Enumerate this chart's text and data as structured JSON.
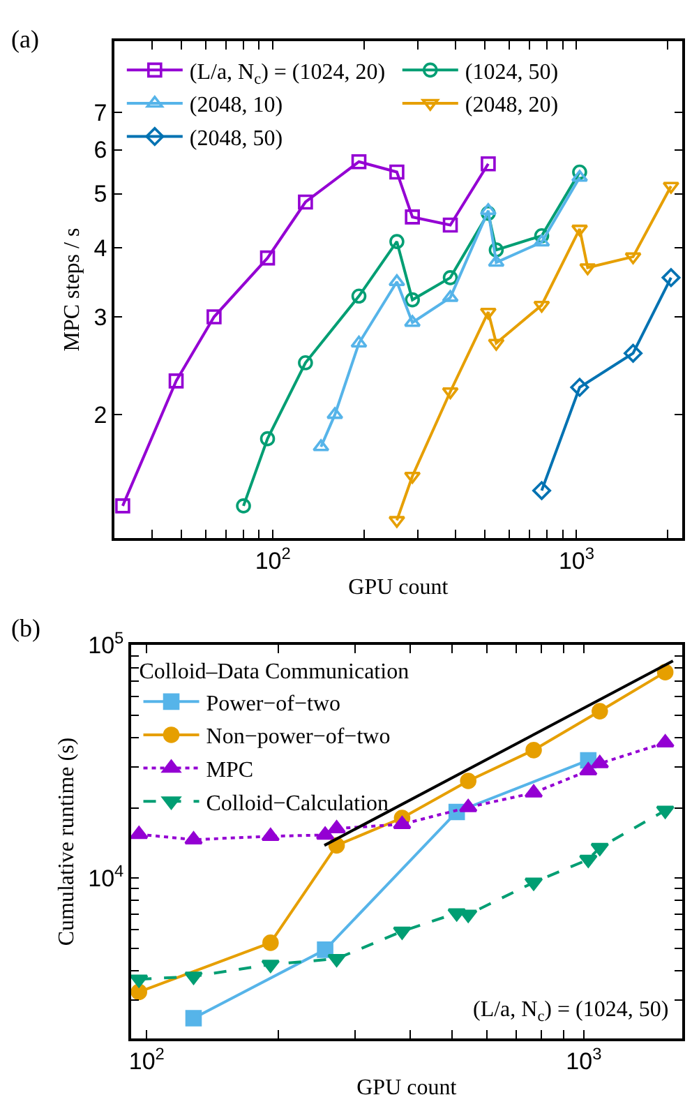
{
  "chart_data": [
    {
      "type": "line",
      "title": "(a)",
      "xlabel": "GPU count",
      "ylabel": "MPC steps / s",
      "log": "xy",
      "legend": "top",
      "line_style": "solid",
      "xlim": [
        30,
        2230
      ],
      "ylim": [
        1.2,
        9.4
      ],
      "xticks": [
        {
          "value": 40,
          "label": null
        },
        {
          "value": 50,
          "label": null
        },
        {
          "value": 60,
          "label": null
        },
        {
          "value": 70,
          "label": null
        },
        {
          "value": 80,
          "label": null
        },
        {
          "value": 90,
          "label": null
        },
        {
          "value": 100,
          "label": "10$^{2}$"
        },
        {
          "value": 200,
          "label": null
        },
        {
          "value": 300,
          "label": null
        },
        {
          "value": 400,
          "label": null
        },
        {
          "value": 500,
          "label": null
        },
        {
          "value": 600,
          "label": null
        },
        {
          "value": 700,
          "label": null
        },
        {
          "value": 800,
          "label": null
        },
        {
          "value": 900,
          "label": null
        },
        {
          "value": 1000,
          "label": "10$^{3}$"
        },
        {
          "value": 2000,
          "label": null
        }
      ],
      "yticks": [
        2,
        3,
        4,
        5,
        6,
        7
      ],
      "series": [
        {
          "name": "(L/a, N$_{c}$) = (1024, 20)",
          "color": "#9400d3",
          "marker": "square-open",
          "x": [
            32,
            48,
            64,
            96,
            128,
            192,
            256,
            288,
            384,
            512
          ],
          "values": [
            1.37,
            2.3,
            3.0,
            3.83,
            4.83,
            5.71,
            5.47,
            4.54,
            4.39,
            5.66
          ]
        },
        {
          "name": "(1024, 50)",
          "color": "#009e73",
          "marker": "circle-open",
          "x": [
            80,
            96,
            128,
            192,
            256,
            288,
            384,
            512,
            544,
            768,
            1024
          ],
          "values": [
            1.37,
            1.81,
            2.48,
            3.27,
            4.1,
            3.22,
            3.53,
            4.61,
            3.96,
            4.2,
            5.47
          ]
        },
        {
          "name": "(2048, 10)",
          "color": "#56b4e9",
          "marker": "triangle-open",
          "x": [
            144,
            160,
            192,
            256,
            288,
            384,
            512,
            544,
            768,
            1024
          ],
          "values": [
            1.75,
            2.0,
            2.69,
            3.47,
            2.93,
            3.25,
            4.66,
            3.76,
            4.09,
            5.35
          ]
        },
        {
          "name": "(2048, 20)",
          "color": "#e69f00",
          "marker": "triangle-down-open",
          "x": [
            256,
            288,
            384,
            512,
            544,
            768,
            1024,
            1088,
            1536,
            2048
          ],
          "values": [
            1.29,
            1.55,
            2.2,
            3.06,
            2.69,
            3.15,
            4.32,
            3.68,
            3.85,
            5.16
          ]
        },
        {
          "name": "(2048, 50)",
          "color": "#0072b2",
          "marker": "diamond-open",
          "x": [
            768,
            1024,
            1536,
            2048
          ],
          "values": [
            1.46,
            2.24,
            2.58,
            3.53
          ]
        }
      ]
    },
    {
      "type": "line",
      "title": "(b)",
      "xlabel": "GPU count",
      "ylabel": "Cumulative runtime (s)",
      "log": "xy",
      "legend": "top left",
      "legend_title": "Colloid–Data Communication",
      "xlim": [
        92,
        1680
      ],
      "ylim": [
        2050,
        100000
      ],
      "xticks": [
        {
          "value": 100,
          "label": "10$^{2}$"
        },
        {
          "value": 200,
          "label": null
        },
        {
          "value": 300,
          "label": null
        },
        {
          "value": 400,
          "label": null
        },
        {
          "value": 500,
          "label": null
        },
        {
          "value": 600,
          "label": null
        },
        {
          "value": 700,
          "label": null
        },
        {
          "value": 800,
          "label": null
        },
        {
          "value": 900,
          "label": null
        },
        {
          "value": 1000,
          "label": "10$^{3}$"
        }
      ],
      "yticks": [
        {
          "value": 3000,
          "label": null
        },
        {
          "value": 4000,
          "label": null
        },
        {
          "value": 5000,
          "label": null
        },
        {
          "value": 6000,
          "label": null
        },
        {
          "value": 7000,
          "label": null
        },
        {
          "value": 8000,
          "label": null
        },
        {
          "value": 9000,
          "label": null
        },
        {
          "value": 10000,
          "label": "10$^{4}$"
        },
        {
          "value": 20000,
          "label": null
        },
        {
          "value": 30000,
          "label": null
        },
        {
          "value": 40000,
          "label": null
        },
        {
          "value": 50000,
          "label": null
        },
        {
          "value": 60000,
          "label": null
        },
        {
          "value": 70000,
          "label": null
        },
        {
          "value": 80000,
          "label": null
        },
        {
          "value": 90000,
          "label": null
        },
        {
          "value": 100000,
          "label": "10$^{5}$"
        }
      ],
      "annotations": [
        "(L/a, N$_{c}$) = (1024, 50)"
      ],
      "series": [
        {
          "name": "Power−of−two",
          "color": "#56b4e9",
          "marker": "square",
          "line_style": "solid",
          "x": [
            128,
            256,
            512,
            1024
          ],
          "values": [
            2500,
            4920,
            19200,
            32000
          ]
        },
        {
          "name": "Non−power−of−two",
          "color": "#e69f00",
          "marker": "circle",
          "line_style": "solid",
          "x": [
            96,
            192,
            272,
            384,
            544,
            768,
            1088,
            1536
          ],
          "values": [
            3240,
            5270,
            13800,
            18100,
            26100,
            35400,
            52000,
            76500
          ]
        },
        {
          "name": "MPC",
          "color": "#9400d3",
          "marker": "triangle",
          "line_style": "dotted",
          "x": [
            96,
            128,
            192,
            256,
            272,
            384,
            544,
            768,
            1024,
            1088,
            1536
          ],
          "values": [
            15400,
            14600,
            15100,
            15300,
            16300,
            17000,
            20100,
            23200,
            28900,
            31000,
            38100
          ]
        },
        {
          "name": "Colloid−Calculation",
          "color": "#009e73",
          "marker": "triangle-down",
          "line_style": "dashed",
          "x": [
            96,
            128,
            192,
            272,
            384,
            512,
            544,
            768,
            1024,
            1088,
            1536
          ],
          "values": [
            3670,
            3780,
            4250,
            4500,
            5900,
            7070,
            6970,
            9570,
            12000,
            13500,
            19500
          ]
        },
        {
          "color": "#000000",
          "marker": "none",
          "line_style": "solid",
          "x": [
            255,
            1600
          ],
          "values": [
            13800,
            85500
          ]
        }
      ]
    }
  ]
}
